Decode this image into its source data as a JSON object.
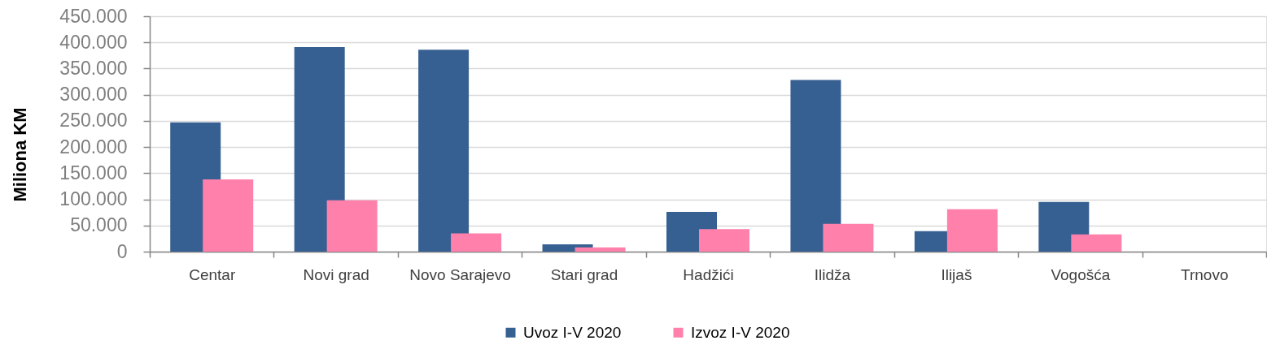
{
  "chart_data": {
    "type": "bar",
    "ylabel": "Miliona KM",
    "categories": [
      "Centar",
      "Novi grad",
      "Novo Sarajevo",
      "Stari grad",
      "Hadžići",
      "Ilidža",
      "Ilijaš",
      "Vogošća",
      "Trnovo"
    ],
    "series": [
      {
        "name": "Uvoz I-V 2020",
        "color": "#376092",
        "values": [
          247000,
          391000,
          386000,
          14000,
          76000,
          328000,
          39000,
          95000,
          0
        ]
      },
      {
        "name": "Izvoz I-V 2020",
        "color": "#ff80ab",
        "values": [
          138000,
          98000,
          35000,
          8000,
          43000,
          53000,
          81000,
          33000,
          0
        ]
      }
    ],
    "ylim": [
      0,
      450000
    ],
    "yticks": [
      0,
      {
        "value": 50000,
        "label": "50.000"
      },
      {
        "value": 100000,
        "label": "100.000"
      },
      {
        "value": 150000,
        "label": "150.000"
      },
      {
        "value": 200000,
        "label": "200.000"
      },
      {
        "value": 250000,
        "label": "250.000"
      },
      {
        "value": 300000,
        "label": "300.000"
      },
      {
        "value": 350000,
        "label": "350.000"
      },
      {
        "value": 400000,
        "label": "400.000"
      },
      {
        "value": 450000,
        "label": "450.000"
      }
    ],
    "grid": "y",
    "legend": "bottom"
  }
}
